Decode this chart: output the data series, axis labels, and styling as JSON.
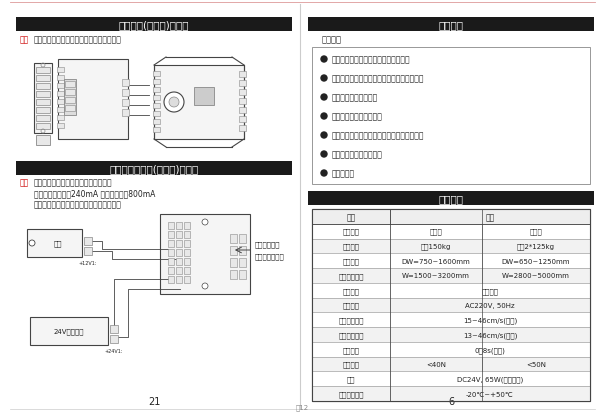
{
  "page_bg": "#f0f0ec",
  "left_page_num": "21",
  "right_page_num": "6",
  "footer_text": "图12",
  "sec1_header": "安全光线(选配件)的连接",
  "sec1_note_bold": "注意",
  "sec1_note_rest": "：所有接线操作须在断电情况下才能进行。",
  "sec2_header": "后备电源与电锁(选配件)的连接",
  "sec2_note_bold": "注意",
  "sec2_note_line1": "：所有接线操作须在断开电源下进行。",
  "sec2_note_line2": "电锁工作电流小于240mA 启动电流小于800mA",
  "sec2_note_line3": "接后备电源时注意正负极，具体操作如下图",
  "diag2_label_elec": "电锁",
  "diag2_label_ctrl": "+12V1:",
  "diag2_annot1": "无遥控器时，",
  "diag2_annot2": "电锁工作断闭接",
  "diag2_bkpwr": "24V后备电源",
  "diag2_bkpwr_term": "+24V1:",
  "prod_header": "产品特点",
  "prod_sub": "系列特点",
  "features": [
    "微计算机智能控制和先进的机械制造。",
    "自动调整门扇运行状态，必要时可人工调整。",
    "开、闭平稳，噪音低。",
    "无刷电机，使用寿命长。",
    "双门互锁与电子锁动能，支持多种门禁系统。",
    "容量两用，承载能力大。",
    "安装简便。"
  ],
  "tech_header": "技术指标",
  "table_col1_header": "规格",
  "table_col2_header": "系列",
  "table_rows": [
    [
      "门体形式",
      "单开式",
      "双开式"
    ],
    [
      "门扇重量",
      "最大150kg",
      "最大2*125kg"
    ],
    [
      "门扇宽度",
      "DW=750~1600mm",
      "DW=650~1250mm"
    ],
    [
      "净空结构宽度",
      "W=1500~3200mm",
      "W=2800~5000mm"
    ],
    [
      "安装方式",
      "顶部安装",
      ""
    ],
    [
      "电源电压",
      "AC220V, 50Hz",
      ""
    ],
    [
      "开门运行速度",
      "15~46cm/s(可调)",
      ""
    ],
    [
      "关门运行速度",
      "13~46cm/s(可调)",
      ""
    ],
    [
      "开放时间",
      "0～8s(可调)",
      ""
    ],
    [
      "手动推力",
      "<40N",
      "<50N"
    ],
    [
      "电机",
      "DC24V, 65W(直流无刷)",
      ""
    ],
    [
      "工作环境温度",
      "-20℃~+50℃",
      ""
    ]
  ],
  "header_bg": "#1a1a1a",
  "header_fg": "#ffffff",
  "note_red": "#cc0000",
  "text_dark": "#222222",
  "border_dark": "#444444",
  "border_med": "#888888",
  "border_light": "#bbbbbb",
  "fill_light": "#e8e8e8",
  "fill_lighter": "#f5f5f5",
  "table_alt": "#f2f2f2",
  "fs_header": 7.5,
  "fs_note": 5.5,
  "fs_feat": 5.5,
  "fs_table": 5.5,
  "fs_pagenum": 7
}
